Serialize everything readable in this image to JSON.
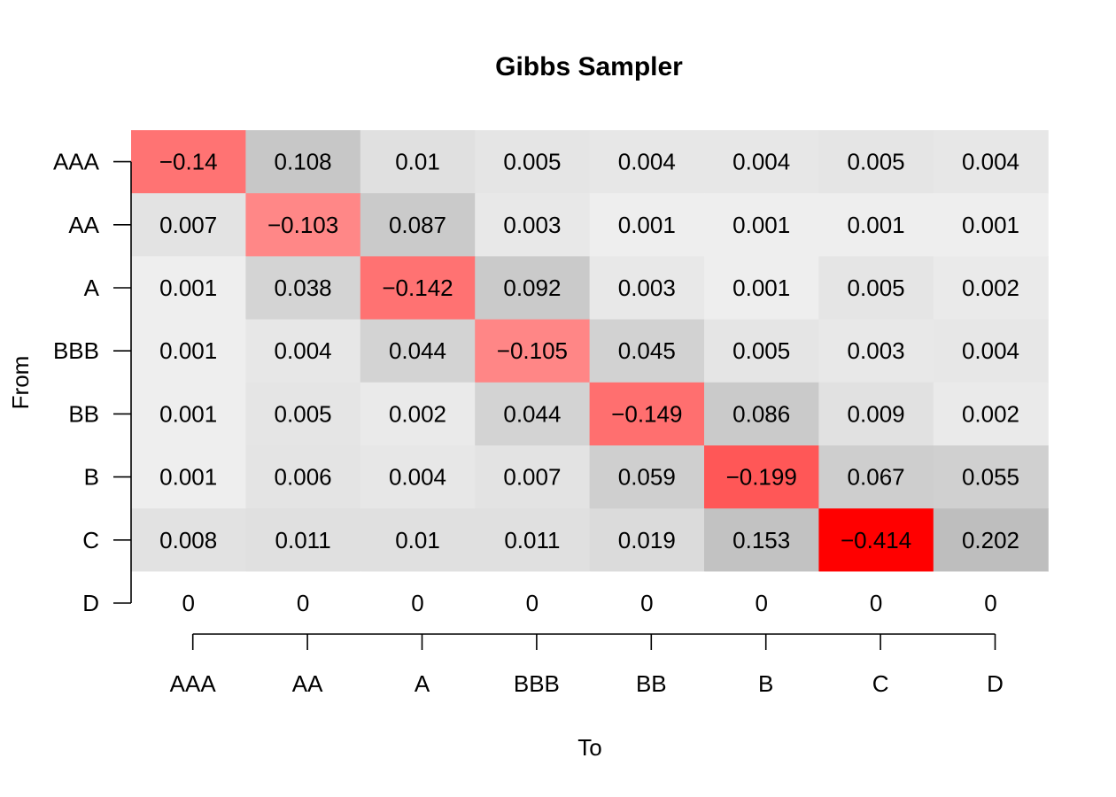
{
  "chart_data": {
    "type": "heatmap",
    "title": "Gibbs Sampler",
    "xlabel": "To",
    "ylabel": "From",
    "x_categories": [
      "AAA",
      "AA",
      "A",
      "BBB",
      "BB",
      "B",
      "C",
      "D"
    ],
    "y_categories": [
      "AAA",
      "AA",
      "A",
      "BBB",
      "BB",
      "B",
      "C",
      "D"
    ],
    "values": [
      [
        -0.14,
        0.108,
        0.01,
        0.005,
        0.004,
        0.004,
        0.005,
        0.004
      ],
      [
        0.007,
        -0.103,
        0.087,
        0.003,
        0.001,
        0.001,
        0.001,
        0.001
      ],
      [
        0.001,
        0.038,
        -0.142,
        0.092,
        0.003,
        0.001,
        0.005,
        0.002
      ],
      [
        0.001,
        0.004,
        0.044,
        -0.105,
        0.045,
        0.005,
        0.003,
        0.004
      ],
      [
        0.001,
        0.005,
        0.002,
        0.044,
        -0.149,
        0.086,
        0.009,
        0.002
      ],
      [
        0.001,
        0.006,
        0.004,
        0.007,
        0.059,
        -0.199,
        0.067,
        0.055
      ],
      [
        0.008,
        0.011,
        0.01,
        0.011,
        0.019,
        0.153,
        -0.414,
        0.202
      ],
      [
        0,
        0,
        0,
        0,
        0,
        0,
        0,
        0
      ]
    ],
    "cell_labels": [
      [
        "−0.14",
        "0.108",
        "0.01",
        "0.005",
        "0.004",
        "0.004",
        "0.005",
        "0.004"
      ],
      [
        "0.007",
        "−0.103",
        "0.087",
        "0.003",
        "0.001",
        "0.001",
        "0.001",
        "0.001"
      ],
      [
        "0.001",
        "0.038",
        "−0.142",
        "0.092",
        "0.003",
        "0.001",
        "0.005",
        "0.002"
      ],
      [
        "0.001",
        "0.004",
        "0.044",
        "−0.105",
        "0.045",
        "0.005",
        "0.003",
        "0.004"
      ],
      [
        "0.001",
        "0.005",
        "0.002",
        "0.044",
        "−0.149",
        "0.086",
        "0.009",
        "0.002"
      ],
      [
        "0.001",
        "0.006",
        "0.004",
        "0.007",
        "0.059",
        "−0.199",
        "0.067",
        "0.055"
      ],
      [
        "0.008",
        "0.011",
        "0.01",
        "0.011",
        "0.019",
        "0.153",
        "−0.414",
        "0.202"
      ],
      [
        "0",
        "0",
        "0",
        "0",
        "0",
        "0",
        "0",
        "0"
      ]
    ],
    "negative_color": "#ff0000",
    "positive_color": "#bebebe",
    "background_color": "#ffffff",
    "grid": false,
    "legend": "none"
  }
}
